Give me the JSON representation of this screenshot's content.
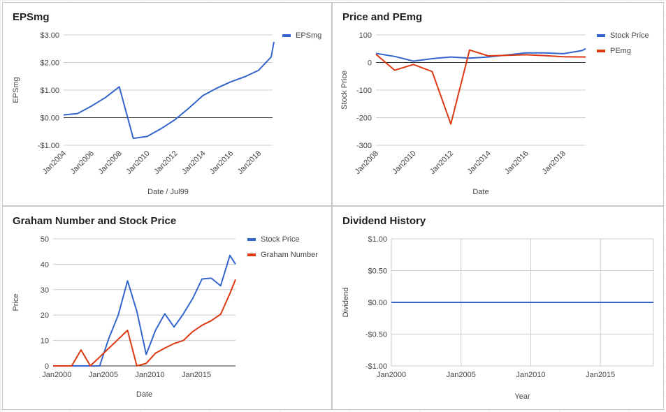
{
  "chart_data": [
    {
      "type": "line",
      "title": "EPSmg",
      "xlabel": "Date / Jul99",
      "ylabel": "EPSmg",
      "xlim": [
        2004,
        2019
      ],
      "ylim": [
        -1,
        3
      ],
      "yticks": [
        3,
        2,
        1,
        0,
        -1
      ],
      "ytick_labels": [
        "$3.00",
        "$2.00",
        "$1.00",
        "$0.00",
        "-$1.00"
      ],
      "xticks": [
        2004,
        2006,
        2008,
        2010,
        2012,
        2014,
        2016,
        2018
      ],
      "xtick_labels": [
        "Jan2004",
        "Jan2006",
        "Jan2008",
        "Jan2010",
        "Jan2012",
        "Jan2014",
        "Jan2016",
        "Jan2018"
      ],
      "legend_position": "top-right",
      "zero_line": true,
      "colors": [
        "#3366cc"
      ],
      "series": [
        {
          "name": "EPSmg",
          "x": [
            2004,
            2005,
            2006,
            2007,
            2008,
            2009,
            2010,
            2011,
            2012,
            2013,
            2014,
            2015,
            2016,
            2017,
            2018,
            2018.9,
            2019.1
          ],
          "y": [
            0.1,
            0.15,
            0.42,
            0.73,
            1.12,
            -0.75,
            -0.68,
            -0.4,
            -0.07,
            0.35,
            0.8,
            1.07,
            1.3,
            1.48,
            1.72,
            2.2,
            2.75
          ]
        }
      ]
    },
    {
      "type": "line",
      "title": "Price and PEmg",
      "xlabel": "Date",
      "ylabel": "Stock Price",
      "xlim": [
        2008,
        2019.2
      ],
      "ylim": [
        -300,
        100
      ],
      "yticks": [
        100,
        0,
        -100,
        -200,
        -300
      ],
      "ytick_labels": [
        "100",
        "0",
        "-100",
        "-200",
        "-300"
      ],
      "xticks": [
        2008,
        2010,
        2012,
        2014,
        2016,
        2018
      ],
      "xtick_labels": [
        "Jan2008",
        "Jan2010",
        "Jan2012",
        "Jan2014",
        "Jan2016",
        "Jan2018"
      ],
      "legend_position": "top-right",
      "zero_line": true,
      "colors": [
        "#3366cc",
        "#dc3912"
      ],
      "series": [
        {
          "name": "Stock Price",
          "x": [
            2008,
            2009,
            2010,
            2011,
            2012,
            2013,
            2014,
            2015,
            2016,
            2017,
            2018,
            2019,
            2019.2
          ],
          "y": [
            33,
            22,
            5,
            14,
            20,
            16,
            20,
            27,
            35,
            35,
            32,
            43,
            50
          ]
        },
        {
          "name": "PEmg",
          "x": [
            2008,
            2009,
            2010,
            2011,
            2012,
            2013,
            2014,
            2015,
            2016,
            2017,
            2018,
            2019.2
          ],
          "y": [
            30,
            -28,
            -7,
            -33,
            -223,
            45,
            24,
            26,
            28,
            25,
            21,
            20
          ]
        }
      ]
    },
    {
      "type": "line",
      "title": "Graham Number and Stock Price",
      "xlabel": "Date",
      "ylabel": "Price",
      "xlim": [
        1999.6,
        2019.2
      ],
      "ylim": [
        0,
        50
      ],
      "yticks": [
        50,
        40,
        30,
        20,
        10,
        0
      ],
      "ytick_labels": [
        "50",
        "40",
        "30",
        "20",
        "10",
        "0"
      ],
      "xticks": [
        2000,
        2005,
        2010,
        2015
      ],
      "xtick_labels": [
        "Jan2000",
        "Jan2005",
        "Jan2010",
        "Jan2015"
      ],
      "legend_position": "top-right",
      "colors": [
        "#3366cc",
        "#dc3912"
      ],
      "series": [
        {
          "name": "Stock Price",
          "x": [
            1999.6,
            2004.6,
            2005.6,
            2006.6,
            2007.6,
            2008.6,
            2009.6,
            2010.6,
            2011.6,
            2012.6,
            2013.6,
            2014.6,
            2015.6,
            2016.6,
            2017.6,
            2018.6,
            2019.2
          ],
          "y": [
            0,
            0,
            11,
            20,
            33.5,
            21.5,
            4.5,
            14,
            20.5,
            15.3,
            20.5,
            26.5,
            34.2,
            34.5,
            31.5,
            43.5,
            40
          ]
        },
        {
          "name": "Graham Number",
          "x": [
            1999.6,
            2000.6,
            2001.6,
            2002.6,
            2003.6,
            2004.6,
            2005.6,
            2006.6,
            2007.6,
            2008.6,
            2009.6,
            2010.6,
            2011.6,
            2012.6,
            2013.6,
            2014.6,
            2015.6,
            2016.6,
            2017.6,
            2018.6,
            2019.2
          ],
          "y": [
            0,
            0,
            0,
            6.3,
            0,
            3.5,
            7,
            10.5,
            14,
            0,
            1,
            5,
            7,
            8.8,
            10,
            13.5,
            16,
            17.8,
            20.3,
            28.5,
            34
          ]
        }
      ]
    },
    {
      "type": "line",
      "title": "Dividend History",
      "xlabel": "Year",
      "ylabel": "Dividend",
      "xlim": [
        2000,
        2018.8
      ],
      "ylim": [
        -1,
        1
      ],
      "yticks": [
        1,
        0.5,
        0,
        -0.5,
        -1
      ],
      "ytick_labels": [
        "$1.00",
        "$0.50",
        "$0.00",
        "-$0.50",
        "-$1.00"
      ],
      "xticks": [
        2000,
        2005,
        2010,
        2015
      ],
      "xtick_labels": [
        "Jan2000",
        "Jan2005",
        "Jan2010",
        "Jan2015"
      ],
      "vertical_grid": true,
      "colors": [
        "#3366cc"
      ],
      "series": [
        {
          "x": [
            2000,
            2018.8
          ],
          "y": [
            0,
            0
          ]
        }
      ]
    }
  ]
}
